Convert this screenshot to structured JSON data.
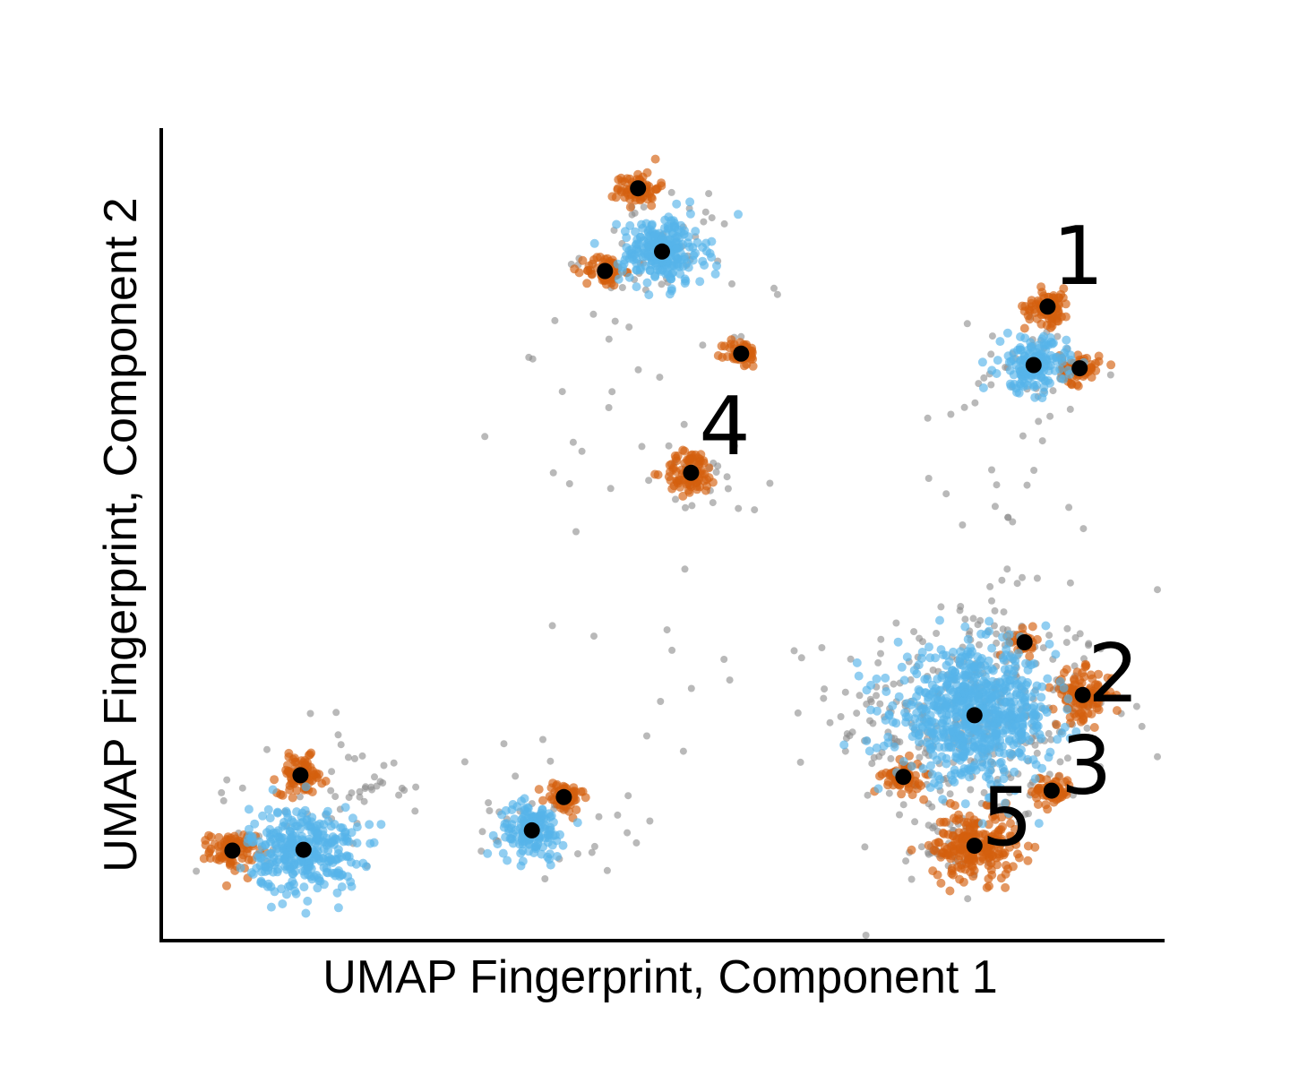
{
  "chart_data": {
    "type": "scatter",
    "xlabel": "UMAP Fingerprint, Component 1",
    "ylabel": "UMAP Fingerprint, Component 2",
    "xlim": [
      0,
      100
    ],
    "ylim": [
      0,
      100
    ],
    "xticks": [],
    "yticks": [],
    "grid": false,
    "legend": "none",
    "colors": {
      "background_points": "#8a8a8a",
      "orange_clusters": "#d45f0e",
      "blue_clusters": "#56b4e9",
      "centroids": "#000000",
      "axes": "#000000"
    },
    "clusters": [
      {
        "color": "blue",
        "cx": 14.2,
        "cy": 11.2,
        "spread": 3.6,
        "count": 320
      },
      {
        "color": "orange",
        "cx": 7.1,
        "cy": 11.1,
        "spread": 1.5,
        "count": 90
      },
      {
        "color": "orange",
        "cx": 13.9,
        "cy": 20.4,
        "spread": 1.5,
        "count": 90
      },
      {
        "color": "blue",
        "cx": 37.0,
        "cy": 13.6,
        "spread": 2.2,
        "count": 150
      },
      {
        "color": "orange",
        "cx": 40.2,
        "cy": 17.7,
        "spread": 1.3,
        "count": 60
      },
      {
        "color": "blue",
        "cx": 50.0,
        "cy": 85.0,
        "spread": 2.8,
        "count": 240
      },
      {
        "color": "orange",
        "cx": 47.6,
        "cy": 92.8,
        "spread": 1.4,
        "count": 70
      },
      {
        "color": "orange",
        "cx": 44.3,
        "cy": 82.6,
        "spread": 1.3,
        "count": 60
      },
      {
        "color": "orange",
        "cx": 57.9,
        "cy": 72.4,
        "spread": 1.1,
        "count": 50
      },
      {
        "color": "orange",
        "cx": 52.9,
        "cy": 57.7,
        "spread": 1.8,
        "count": 90
      },
      {
        "color": "blue",
        "cx": 87.1,
        "cy": 71.0,
        "spread": 2.2,
        "count": 160
      },
      {
        "color": "orange",
        "cx": 88.5,
        "cy": 78.2,
        "spread": 1.5,
        "count": 80
      },
      {
        "color": "orange",
        "cx": 91.7,
        "cy": 70.6,
        "spread": 1.3,
        "count": 60
      },
      {
        "color": "blue",
        "cx": 81.2,
        "cy": 27.8,
        "spread": 5.2,
        "count": 700
      },
      {
        "color": "orange",
        "cx": 86.2,
        "cy": 36.8,
        "spread": 1.0,
        "count": 30
      },
      {
        "color": "orange",
        "cx": 92.0,
        "cy": 30.3,
        "spread": 2.0,
        "count": 110
      },
      {
        "color": "orange",
        "cx": 88.9,
        "cy": 18.5,
        "spread": 1.3,
        "count": 60
      },
      {
        "color": "orange",
        "cx": 74.1,
        "cy": 20.2,
        "spread": 1.3,
        "count": 60
      },
      {
        "color": "orange",
        "cx": 81.2,
        "cy": 11.7,
        "spread": 2.8,
        "count": 220
      }
    ],
    "background_groups": [
      {
        "cx": 81.2,
        "cy": 27.8,
        "spread": 7.0,
        "count": 320
      },
      {
        "cx": 22.0,
        "cy": 18.8,
        "spread": 2.2,
        "count": 20
      },
      {
        "cx": 39.2,
        "cy": 18.8,
        "spread": 5.5,
        "count": 15
      },
      {
        "cx": 78.5,
        "cy": 11.5,
        "spread": 2.2,
        "count": 40
      },
      {
        "cx": 50.0,
        "cy": 85.0,
        "spread": 4.0,
        "count": 40
      },
      {
        "cx": 47.5,
        "cy": 66.8,
        "spread": 6.5,
        "count": 30
      },
      {
        "cx": 54.6,
        "cy": 57.2,
        "spread": 3.5,
        "count": 20
      },
      {
        "cx": 87.1,
        "cy": 69.0,
        "spread": 4.0,
        "count": 40
      },
      {
        "cx": 83.8,
        "cy": 57.9,
        "spread": 4.0,
        "count": 12
      },
      {
        "cx": 37.0,
        "cy": 13.6,
        "spread": 3.2,
        "count": 20
      },
      {
        "cx": 13.9,
        "cy": 18.0,
        "spread": 5.0,
        "count": 30
      },
      {
        "cx": 47.5,
        "cy": 36.9,
        "spread": 6.0,
        "count": 8
      },
      {
        "cx": 84.8,
        "cy": 44.0,
        "spread": 5.0,
        "count": 15
      }
    ],
    "centroids": [
      {
        "x": 14.2,
        "y": 11.2
      },
      {
        "x": 7.1,
        "y": 11.1
      },
      {
        "x": 13.9,
        "y": 20.4
      },
      {
        "x": 37.0,
        "y": 13.6
      },
      {
        "x": 40.2,
        "y": 17.7
      },
      {
        "x": 50.0,
        "y": 85.0
      },
      {
        "x": 47.6,
        "y": 92.8
      },
      {
        "x": 44.3,
        "y": 82.6
      },
      {
        "x": 57.9,
        "y": 72.4
      },
      {
        "x": 52.9,
        "y": 57.7
      },
      {
        "x": 87.1,
        "y": 71.0
      },
      {
        "x": 88.5,
        "y": 78.2
      },
      {
        "x": 91.7,
        "y": 70.6
      },
      {
        "x": 81.2,
        "y": 27.8
      },
      {
        "x": 86.2,
        "y": 36.8
      },
      {
        "x": 92.0,
        "y": 30.3
      },
      {
        "x": 88.9,
        "y": 18.5
      },
      {
        "x": 74.1,
        "y": 20.2
      },
      {
        "x": 81.2,
        "y": 11.7
      }
    ],
    "annotations": [
      {
        "text": "1",
        "x": 89.0,
        "y": 81.0
      },
      {
        "text": "2",
        "x": 92.5,
        "y": 29.5
      },
      {
        "text": "3",
        "x": 89.8,
        "y": 18.2
      },
      {
        "text": "4",
        "x": 53.7,
        "y": 60.0
      },
      {
        "text": "5",
        "x": 81.9,
        "y": 11.8
      }
    ]
  }
}
